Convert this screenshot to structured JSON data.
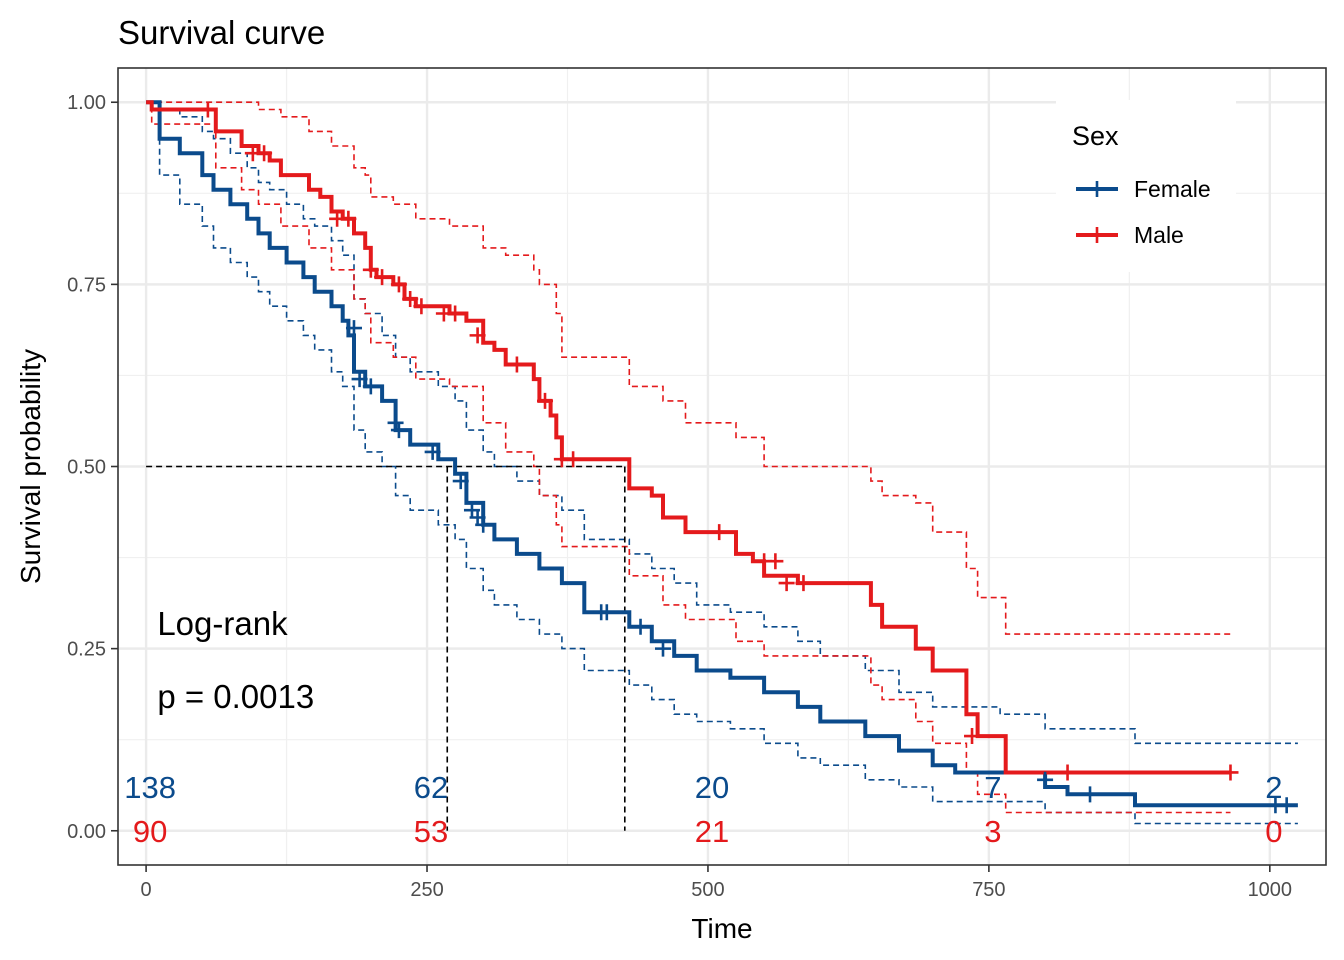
{
  "chart_data": {
    "type": "line",
    "title": "Survival curve",
    "xlabel": "Time",
    "ylabel": "Survival probability",
    "xlim": [
      -25,
      1050
    ],
    "ylim": [
      -0.047,
      1.047
    ],
    "x_ticks": [
      0,
      250,
      500,
      750,
      1000
    ],
    "y_ticks": [
      0.0,
      0.25,
      0.5,
      0.75,
      1.0
    ],
    "x_tick_labels": [
      "0",
      "250",
      "500",
      "750",
      "1000"
    ],
    "y_tick_labels": [
      "0.00",
      "0.25",
      "0.50",
      "0.75",
      "1.00"
    ],
    "grid": true,
    "legend": {
      "title": "Sex",
      "placement": "top-right"
    },
    "series": [
      {
        "name": "Female",
        "color": "#0b4b8c",
        "steps": [
          [
            0,
            1.0
          ],
          [
            12,
            0.95
          ],
          [
            30,
            0.93
          ],
          [
            50,
            0.9
          ],
          [
            60,
            0.88
          ],
          [
            75,
            0.86
          ],
          [
            90,
            0.84
          ],
          [
            100,
            0.82
          ],
          [
            110,
            0.8
          ],
          [
            125,
            0.78
          ],
          [
            140,
            0.76
          ],
          [
            150,
            0.74
          ],
          [
            165,
            0.72
          ],
          [
            175,
            0.7
          ],
          [
            180,
            0.68
          ],
          [
            185,
            0.63
          ],
          [
            195,
            0.61
          ],
          [
            210,
            0.59
          ],
          [
            222,
            0.55
          ],
          [
            235,
            0.53
          ],
          [
            260,
            0.51
          ],
          [
            275,
            0.49
          ],
          [
            285,
            0.45
          ],
          [
            300,
            0.42
          ],
          [
            310,
            0.4
          ],
          [
            330,
            0.38
          ],
          [
            350,
            0.36
          ],
          [
            370,
            0.34
          ],
          [
            390,
            0.3
          ],
          [
            420,
            0.3
          ],
          [
            430,
            0.28
          ],
          [
            450,
            0.26
          ],
          [
            470,
            0.24
          ],
          [
            490,
            0.22
          ],
          [
            520,
            0.21
          ],
          [
            550,
            0.19
          ],
          [
            580,
            0.17
          ],
          [
            600,
            0.15
          ],
          [
            640,
            0.13
          ],
          [
            670,
            0.11
          ],
          [
            700,
            0.09
          ],
          [
            720,
            0.08
          ],
          [
            760,
            0.08
          ],
          [
            800,
            0.06
          ],
          [
            820,
            0.05
          ],
          [
            870,
            0.05
          ],
          [
            880,
            0.035
          ],
          [
            1025,
            0.035
          ]
        ],
        "lower": [
          [
            0,
            1.0
          ],
          [
            12,
            0.9
          ],
          [
            30,
            0.86
          ],
          [
            50,
            0.83
          ],
          [
            60,
            0.8
          ],
          [
            75,
            0.78
          ],
          [
            90,
            0.76
          ],
          [
            100,
            0.74
          ],
          [
            110,
            0.72
          ],
          [
            125,
            0.7
          ],
          [
            140,
            0.68
          ],
          [
            150,
            0.66
          ],
          [
            165,
            0.63
          ],
          [
            175,
            0.61
          ],
          [
            185,
            0.55
          ],
          [
            195,
            0.52
          ],
          [
            210,
            0.5
          ],
          [
            222,
            0.46
          ],
          [
            235,
            0.44
          ],
          [
            260,
            0.42
          ],
          [
            275,
            0.4
          ],
          [
            285,
            0.36
          ],
          [
            300,
            0.33
          ],
          [
            310,
            0.31
          ],
          [
            330,
            0.29
          ],
          [
            350,
            0.27
          ],
          [
            370,
            0.25
          ],
          [
            390,
            0.22
          ],
          [
            430,
            0.2
          ],
          [
            450,
            0.18
          ],
          [
            470,
            0.16
          ],
          [
            490,
            0.15
          ],
          [
            520,
            0.14
          ],
          [
            550,
            0.12
          ],
          [
            580,
            0.1
          ],
          [
            600,
            0.09
          ],
          [
            640,
            0.07
          ],
          [
            670,
            0.06
          ],
          [
            700,
            0.04
          ],
          [
            760,
            0.04
          ],
          [
            800,
            0.025
          ],
          [
            880,
            0.01
          ],
          [
            1025,
            0.01
          ]
        ],
        "upper": [
          [
            0,
            1.0
          ],
          [
            12,
            0.99
          ],
          [
            30,
            0.98
          ],
          [
            50,
            0.96
          ],
          [
            60,
            0.95
          ],
          [
            75,
            0.93
          ],
          [
            90,
            0.91
          ],
          [
            100,
            0.89
          ],
          [
            110,
            0.88
          ],
          [
            125,
            0.86
          ],
          [
            140,
            0.84
          ],
          [
            150,
            0.83
          ],
          [
            165,
            0.81
          ],
          [
            175,
            0.79
          ],
          [
            185,
            0.73
          ],
          [
            195,
            0.71
          ],
          [
            210,
            0.68
          ],
          [
            222,
            0.65
          ],
          [
            235,
            0.63
          ],
          [
            260,
            0.61
          ],
          [
            275,
            0.59
          ],
          [
            285,
            0.55
          ],
          [
            300,
            0.52
          ],
          [
            310,
            0.5
          ],
          [
            330,
            0.48
          ],
          [
            350,
            0.46
          ],
          [
            370,
            0.44
          ],
          [
            390,
            0.4
          ],
          [
            430,
            0.38
          ],
          [
            450,
            0.36
          ],
          [
            470,
            0.34
          ],
          [
            490,
            0.31
          ],
          [
            520,
            0.3
          ],
          [
            550,
            0.28
          ],
          [
            580,
            0.26
          ],
          [
            600,
            0.24
          ],
          [
            640,
            0.22
          ],
          [
            670,
            0.19
          ],
          [
            700,
            0.17
          ],
          [
            760,
            0.16
          ],
          [
            800,
            0.14
          ],
          [
            880,
            0.12
          ],
          [
            1025,
            0.12
          ]
        ],
        "censored": [
          [
            185,
            0.69
          ],
          [
            190,
            0.62
          ],
          [
            200,
            0.61
          ],
          [
            222,
            0.56
          ],
          [
            225,
            0.55
          ],
          [
            255,
            0.52
          ],
          [
            280,
            0.48
          ],
          [
            290,
            0.44
          ],
          [
            295,
            0.43
          ],
          [
            300,
            0.42
          ],
          [
            405,
            0.3
          ],
          [
            410,
            0.3
          ],
          [
            440,
            0.28
          ],
          [
            460,
            0.25
          ],
          [
            800,
            0.07
          ],
          [
            840,
            0.05
          ],
          [
            1005,
            0.035
          ],
          [
            1015,
            0.035
          ]
        ]
      },
      {
        "name": "Male",
        "color": "#e41a1c",
        "steps": [
          [
            0,
            1.0
          ],
          [
            5,
            0.99
          ],
          [
            60,
            0.99
          ],
          [
            62,
            0.96
          ],
          [
            80,
            0.96
          ],
          [
            85,
            0.94
          ],
          [
            100,
            0.93
          ],
          [
            110,
            0.92
          ],
          [
            120,
            0.9
          ],
          [
            140,
            0.9
          ],
          [
            145,
            0.88
          ],
          [
            155,
            0.87
          ],
          [
            165,
            0.85
          ],
          [
            175,
            0.84
          ],
          [
            185,
            0.82
          ],
          [
            195,
            0.8
          ],
          [
            200,
            0.77
          ],
          [
            205,
            0.76
          ],
          [
            220,
            0.75
          ],
          [
            230,
            0.73
          ],
          [
            240,
            0.72
          ],
          [
            270,
            0.71
          ],
          [
            285,
            0.7
          ],
          [
            300,
            0.67
          ],
          [
            310,
            0.66
          ],
          [
            320,
            0.64
          ],
          [
            340,
            0.64
          ],
          [
            345,
            0.62
          ],
          [
            350,
            0.59
          ],
          [
            360,
            0.57
          ],
          [
            365,
            0.54
          ],
          [
            370,
            0.51
          ],
          [
            425,
            0.51
          ],
          [
            430,
            0.47
          ],
          [
            450,
            0.46
          ],
          [
            460,
            0.43
          ],
          [
            480,
            0.41
          ],
          [
            520,
            0.41
          ],
          [
            525,
            0.38
          ],
          [
            540,
            0.37
          ],
          [
            550,
            0.35
          ],
          [
            580,
            0.34
          ],
          [
            640,
            0.34
          ],
          [
            645,
            0.31
          ],
          [
            655,
            0.28
          ],
          [
            680,
            0.28
          ],
          [
            685,
            0.25
          ],
          [
            700,
            0.22
          ],
          [
            725,
            0.22
          ],
          [
            730,
            0.16
          ],
          [
            740,
            0.13
          ],
          [
            760,
            0.13
          ],
          [
            765,
            0.08
          ],
          [
            965,
            0.08
          ]
        ],
        "lower": [
          [
            0,
            1.0
          ],
          [
            5,
            0.97
          ],
          [
            60,
            0.97
          ],
          [
            62,
            0.91
          ],
          [
            85,
            0.88
          ],
          [
            100,
            0.86
          ],
          [
            120,
            0.83
          ],
          [
            145,
            0.8
          ],
          [
            165,
            0.77
          ],
          [
            185,
            0.73
          ],
          [
            195,
            0.71
          ],
          [
            200,
            0.67
          ],
          [
            220,
            0.65
          ],
          [
            240,
            0.62
          ],
          [
            270,
            0.61
          ],
          [
            300,
            0.56
          ],
          [
            320,
            0.52
          ],
          [
            345,
            0.5
          ],
          [
            350,
            0.46
          ],
          [
            365,
            0.42
          ],
          [
            370,
            0.39
          ],
          [
            425,
            0.39
          ],
          [
            430,
            0.35
          ],
          [
            460,
            0.31
          ],
          [
            480,
            0.29
          ],
          [
            525,
            0.26
          ],
          [
            550,
            0.24
          ],
          [
            640,
            0.24
          ],
          [
            645,
            0.2
          ],
          [
            655,
            0.18
          ],
          [
            685,
            0.15
          ],
          [
            700,
            0.12
          ],
          [
            730,
            0.08
          ],
          [
            740,
            0.05
          ],
          [
            765,
            0.025
          ],
          [
            965,
            0.025
          ]
        ],
        "upper": [
          [
            0,
            1.0
          ],
          [
            5,
            1.0
          ],
          [
            60,
            1.0
          ],
          [
            62,
            1.0
          ],
          [
            85,
            1.0
          ],
          [
            100,
            0.99
          ],
          [
            120,
            0.98
          ],
          [
            145,
            0.96
          ],
          [
            165,
            0.94
          ],
          [
            185,
            0.91
          ],
          [
            195,
            0.9
          ],
          [
            200,
            0.87
          ],
          [
            220,
            0.86
          ],
          [
            240,
            0.84
          ],
          [
            270,
            0.83
          ],
          [
            300,
            0.8
          ],
          [
            320,
            0.79
          ],
          [
            345,
            0.77
          ],
          [
            350,
            0.75
          ],
          [
            365,
            0.71
          ],
          [
            370,
            0.65
          ],
          [
            425,
            0.65
          ],
          [
            430,
            0.61
          ],
          [
            460,
            0.59
          ],
          [
            480,
            0.56
          ],
          [
            525,
            0.54
          ],
          [
            550,
            0.5
          ],
          [
            640,
            0.5
          ],
          [
            645,
            0.48
          ],
          [
            655,
            0.46
          ],
          [
            685,
            0.45
          ],
          [
            700,
            0.41
          ],
          [
            730,
            0.36
          ],
          [
            740,
            0.32
          ],
          [
            765,
            0.27
          ],
          [
            965,
            0.27
          ]
        ],
        "censored": [
          [
            55,
            0.99
          ],
          [
            95,
            0.93
          ],
          [
            105,
            0.93
          ],
          [
            170,
            0.84
          ],
          [
            180,
            0.84
          ],
          [
            200,
            0.77
          ],
          [
            210,
            0.76
          ],
          [
            225,
            0.75
          ],
          [
            235,
            0.73
          ],
          [
            245,
            0.72
          ],
          [
            265,
            0.71
          ],
          [
            275,
            0.71
          ],
          [
            295,
            0.68
          ],
          [
            330,
            0.64
          ],
          [
            355,
            0.59
          ],
          [
            370,
            0.51
          ],
          [
            380,
            0.51
          ],
          [
            510,
            0.41
          ],
          [
            550,
            0.37
          ],
          [
            560,
            0.37
          ],
          [
            570,
            0.34
          ],
          [
            585,
            0.34
          ],
          [
            735,
            0.13
          ],
          [
            820,
            0.08
          ],
          [
            965,
            0.08
          ]
        ]
      }
    ],
    "medians": [
      {
        "series": "Female",
        "x": 268,
        "y": 0.5
      },
      {
        "series": "Male",
        "x": 426,
        "y": 0.5
      }
    ],
    "risk_table": {
      "times": [
        0,
        250,
        500,
        750,
        1000
      ],
      "Female": [
        "138",
        "62",
        "20",
        "7",
        "2"
      ],
      "Male": [
        "90",
        "53",
        "21",
        "3",
        "0"
      ]
    },
    "annotations": {
      "test": "Log-rank",
      "pvalue": "p = 0.0013"
    }
  }
}
